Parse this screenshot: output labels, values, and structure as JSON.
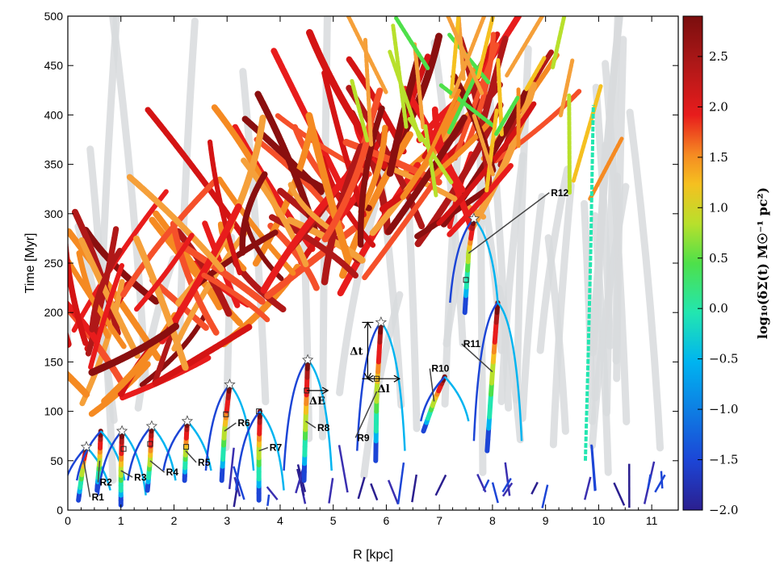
{
  "chart_data": {
    "type": "scatter",
    "xlabel": "R [kpc]",
    "ylabel": "Time [Myr]",
    "xlim": [
      0,
      11.5
    ],
    "ylim": [
      0,
      500
    ],
    "x_ticks": [
      0,
      1,
      2,
      3,
      4,
      5,
      6,
      7,
      8,
      9,
      10,
      11
    ],
    "y_ticks": [
      0,
      50,
      100,
      150,
      200,
      250,
      300,
      350,
      400,
      450,
      500
    ],
    "colorbar": {
      "label": "log₁₀(δΣ(t) M☉⁻¹ pc²)",
      "range": [
        -2.0,
        2.9
      ],
      "ticks": [
        "2.5",
        "2.0",
        "1.5",
        "1.0",
        "0.5",
        "0.0",
        "−0.5",
        "−1.0",
        "−1.5",
        "−2.0"
      ],
      "tick_values": [
        2.5,
        2.0,
        1.5,
        1.0,
        0.5,
        0.0,
        -0.5,
        -1.0,
        -1.5,
        -2.0
      ],
      "colormap": [
        "#2b1f8f",
        "#1c45d6",
        "#00b4f0",
        "#22e6b0",
        "#4ee04a",
        "#b8e02c",
        "#f5c020",
        "#f58a22",
        "#e81c1c",
        "#b01818",
        "#7a0e0e"
      ]
    },
    "regions": [
      {
        "label": "R1",
        "star": [
          0.35,
          64
        ],
        "square": null,
        "track": [
          [
            0.2,
            10
          ],
          [
            0.25,
            30
          ],
          [
            0.3,
            50
          ],
          [
            0.35,
            64
          ]
        ],
        "label_pos": [
          0.45,
          10
        ]
      },
      {
        "label": "R2",
        "star": null,
        "square": null,
        "track": [
          [
            0.55,
            20
          ],
          [
            0.6,
            50
          ],
          [
            0.62,
            80
          ]
        ],
        "label_pos": [
          0.6,
          25
        ]
      },
      {
        "label": "R3",
        "star": [
          1.02,
          80
        ],
        "square": [
          1.05,
          62
        ],
        "track": [
          [
            1.0,
            5
          ],
          [
            1.0,
            40
          ],
          [
            1.02,
            80
          ]
        ],
        "label_pos": [
          1.25,
          30
        ]
      },
      {
        "label": "R4",
        "star": [
          1.58,
          85
        ],
        "square": [
          1.55,
          67
        ],
        "track": [
          [
            1.5,
            20
          ],
          [
            1.55,
            50
          ],
          [
            1.58,
            85
          ]
        ],
        "label_pos": [
          1.85,
          35
        ]
      },
      {
        "label": "R5",
        "star": [
          2.25,
          90
        ],
        "square": [
          2.23,
          64
        ],
        "track": [
          [
            2.2,
            30
          ],
          [
            2.22,
            60
          ],
          [
            2.25,
            90
          ]
        ],
        "label_pos": [
          2.45,
          45
        ]
      },
      {
        "label": "R6",
        "star": [
          3.05,
          127
        ],
        "square": [
          2.98,
          97
        ],
        "track": [
          [
            2.9,
            30
          ],
          [
            2.95,
            80
          ],
          [
            3.05,
            127
          ]
        ],
        "label_pos": [
          3.2,
          85
        ]
      },
      {
        "label": "R7",
        "star": null,
        "square": [
          3.6,
          100
        ],
        "track": [
          [
            3.6,
            10
          ],
          [
            3.6,
            60
          ],
          [
            3.62,
            100
          ]
        ],
        "label_pos": [
          3.8,
          60
        ]
      },
      {
        "label": "R8",
        "star": [
          4.52,
          152
        ],
        "square": [
          4.5,
          121
        ],
        "track": [
          [
            4.45,
            30
          ],
          [
            4.48,
            90
          ],
          [
            4.52,
            152
          ]
        ],
        "label_pos": [
          4.7,
          80
        ]
      },
      {
        "label": "R9",
        "star": [
          5.9,
          190
        ],
        "square": [
          5.82,
          133
        ],
        "track": [
          [
            5.8,
            50
          ],
          [
            5.82,
            120
          ],
          [
            5.9,
            190
          ]
        ],
        "label_pos": [
          5.45,
          70
        ]
      },
      {
        "label": "R10",
        "star": null,
        "square": null,
        "track": [
          [
            6.7,
            80
          ],
          [
            6.9,
            110
          ],
          [
            7.1,
            135
          ]
        ],
        "label_pos": [
          6.85,
          140
        ]
      },
      {
        "label": "R11",
        "star": null,
        "square": null,
        "track": [
          [
            7.9,
            60
          ],
          [
            8.0,
            140
          ],
          [
            8.1,
            210
          ]
        ],
        "label_pos": [
          7.45,
          165
        ]
      },
      {
        "label": "R12",
        "star": [
          7.65,
          295
        ],
        "square": [
          7.5,
          233
        ],
        "track": [
          [
            7.48,
            200
          ],
          [
            7.55,
            260
          ],
          [
            7.65,
            295
          ]
        ],
        "label_pos": [
          9.1,
          318
        ]
      }
    ],
    "annotations": [
      {
        "label": "Δt",
        "kind": "vertical-arrow",
        "x": 5.65,
        "y_range": [
          133,
          190
        ]
      },
      {
        "label": "Δl",
        "kind": "horizontal-arrow",
        "y": 133,
        "x_range": [
          5.65,
          6.25
        ]
      },
      {
        "label": "ΔE",
        "kind": "horizontal-arrow",
        "y": 121,
        "x_range": [
          4.5,
          4.9
        ]
      }
    ],
    "r12_track": [
      [
        9.75,
        50
      ],
      [
        9.8,
        150
      ],
      [
        9.85,
        260
      ],
      [
        9.9,
        410
      ]
    ]
  }
}
